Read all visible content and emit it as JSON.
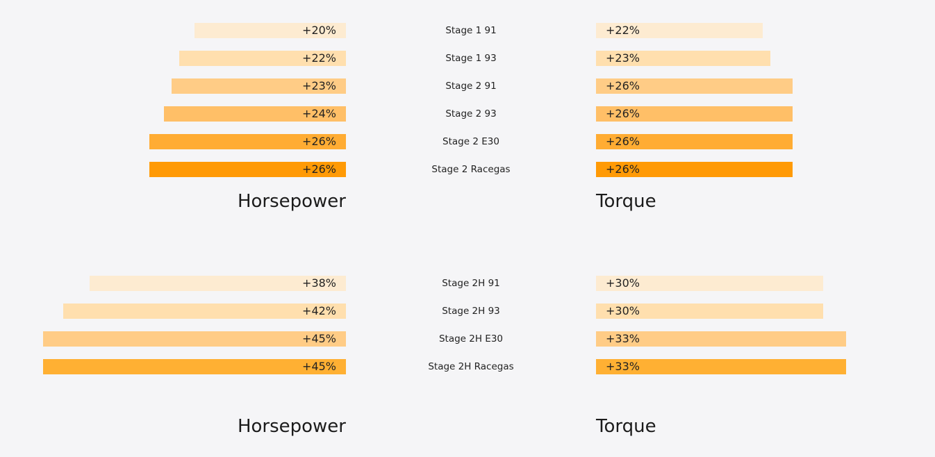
{
  "chart_data": [
    {
      "type": "bar",
      "orientation": "horizontal-butterfly",
      "categories": [
        "Stage 1 91",
        "Stage 1 93",
        "Stage 2 91",
        "Stage 2 93",
        "Stage 2 E30",
        "Stage 2 Racegas"
      ],
      "series": [
        {
          "name": "Horsepower",
          "values": [
            20,
            22,
            23,
            24,
            26,
            26
          ],
          "labels": [
            "+20%",
            "+22%",
            "+23%",
            "+24%",
            "+26%",
            "+26%"
          ]
        },
        {
          "name": "Torque",
          "values": [
            22,
            23,
            26,
            26,
            26,
            26
          ],
          "labels": [
            "+22%",
            "+23%",
            "+26%",
            "+26%",
            "+26%",
            "+26%"
          ]
        }
      ],
      "bar_colors": [
        "#fdebd1",
        "#ffdfae",
        "#ffcc86",
        "#ffbf67",
        "#ffac33",
        "#ff9a06"
      ]
    },
    {
      "type": "bar",
      "orientation": "horizontal-butterfly",
      "categories": [
        "Stage 2H 91",
        "Stage 2H 93",
        "Stage 2H E30",
        "Stage 2H Racegas"
      ],
      "series": [
        {
          "name": "Horsepower",
          "values": [
            38,
            42,
            45,
            45
          ],
          "labels": [
            "+38%",
            "+42%",
            "+45%",
            "+45%"
          ]
        },
        {
          "name": "Torque",
          "values": [
            30,
            30,
            33,
            33
          ],
          "labels": [
            "+30%",
            "+30%",
            "+33%",
            "+33%"
          ]
        }
      ],
      "bar_colors": [
        "#fdebd1",
        "#ffdfae",
        "#ffcc86",
        "#ffb033"
      ]
    }
  ]
}
